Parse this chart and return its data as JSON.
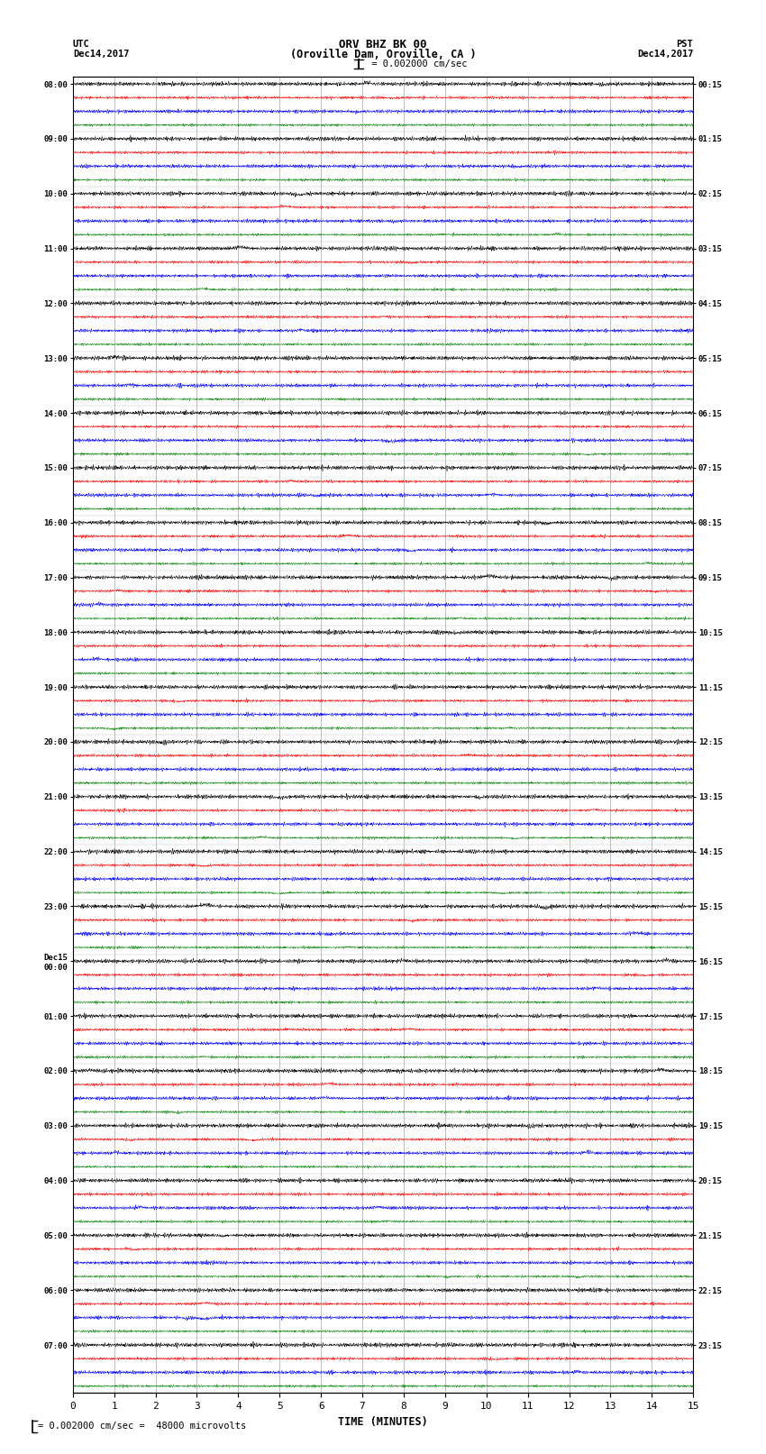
{
  "title_line1": "ORV BHZ BK 00",
  "title_line2": "(Oroville Dam, Oroville, CA )",
  "scale_label": "I  = 0.002000 cm/sec",
  "bottom_label": "A | = 0.002000 cm/sec =  48000 microvolts",
  "xlabel": "TIME (MINUTES)",
  "left_times": [
    "08:00",
    "09:00",
    "10:00",
    "11:00",
    "12:00",
    "13:00",
    "14:00",
    "15:00",
    "16:00",
    "17:00",
    "18:00",
    "19:00",
    "20:00",
    "21:00",
    "22:00",
    "23:00",
    "Dec15\n00:00",
    "01:00",
    "02:00",
    "03:00",
    "04:00",
    "05:00",
    "06:00",
    "07:00"
  ],
  "right_times": [
    "00:15",
    "01:15",
    "02:15",
    "03:15",
    "04:15",
    "05:15",
    "06:15",
    "07:15",
    "08:15",
    "09:15",
    "10:15",
    "11:15",
    "12:15",
    "13:15",
    "14:15",
    "15:15",
    "16:15",
    "17:15",
    "18:15",
    "19:15",
    "20:15",
    "21:15",
    "22:15",
    "23:15"
  ],
  "num_rows": 24,
  "traces_per_row": 4,
  "trace_colors": [
    "black",
    "red",
    "blue",
    "green"
  ],
  "noise_amps": [
    0.012,
    0.008,
    0.01,
    0.007
  ],
  "bg_color": "white",
  "minutes_ticks": [
    0,
    1,
    2,
    3,
    4,
    5,
    6,
    7,
    8,
    9,
    10,
    11,
    12,
    13,
    14,
    15
  ],
  "xlim": [
    0,
    15
  ],
  "fig_width": 8.5,
  "fig_height": 16.13,
  "dpi": 100
}
